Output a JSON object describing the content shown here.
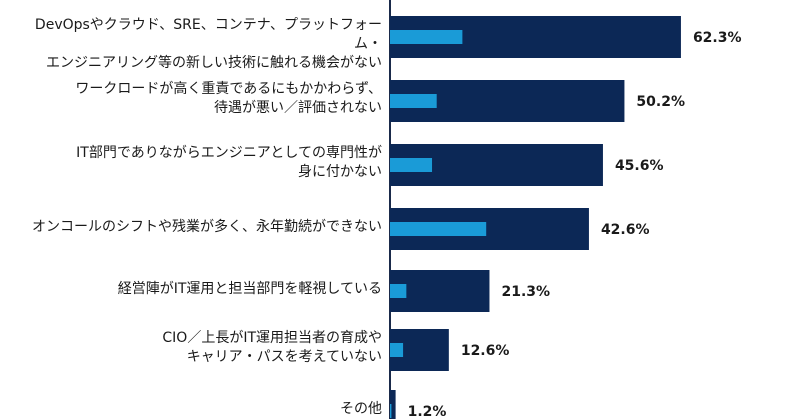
{
  "chart_data": {
    "type": "bar",
    "orientation": "horizontal",
    "categories": [
      "DevOpsやクラウド、SRE、コンテナ、プラットフォーム・\nエンジニアリング等の新しい技術に触れる機会がない",
      "ワークロードが高く重責であるにもかかわらず、\n待遇が悪い／評価されない",
      "IT部門でありながらエンジニアとしての専門性が\n身に付かない",
      "オンコールのシフトや残業が多く、永年勤続ができない",
      "経営陣がIT運用と担当部門を軽視している",
      "CIO／上長がIT運用担当者の育成や\nキャリア・パスを考えていない",
      "その他"
    ],
    "values": [
      62.3,
      50.2,
      45.6,
      42.6,
      21.3,
      12.6,
      1.2
    ],
    "value_labels": [
      "62.3%",
      "50.2%",
      "45.6%",
      "42.6%",
      "21.3%",
      "12.6%",
      "1.2%"
    ],
    "inner_bar_values": [
      15.5,
      10.0,
      9.0,
      20.6,
      3.5,
      2.8,
      0.3
    ],
    "xlim": [
      0,
      100
    ],
    "colors": {
      "outer": "#0c2856",
      "inner": "#1a9bd7",
      "axis": "#1a2a4a"
    }
  }
}
